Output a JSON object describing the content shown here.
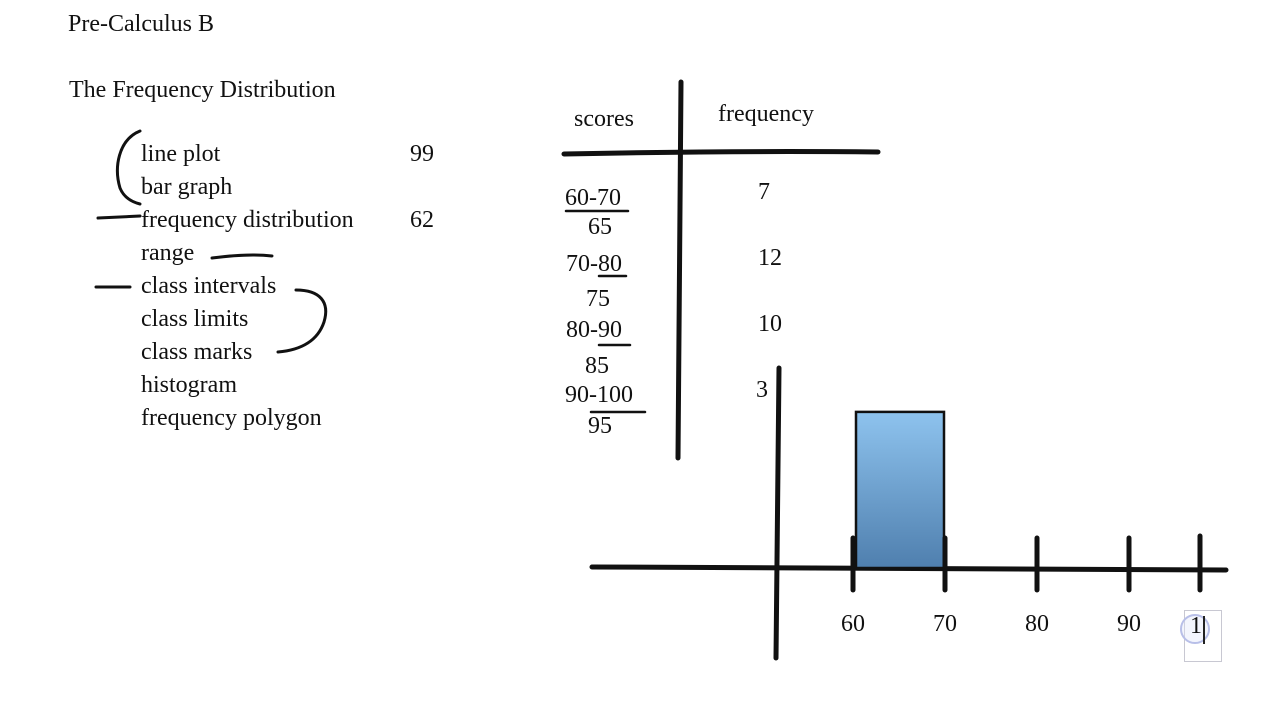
{
  "course_title": "Pre-Calculus B",
  "section_title": "The Frequency Distribution",
  "topics": [
    {
      "label": "line plot"
    },
    {
      "label": "bar graph"
    },
    {
      "label": "frequency distribution"
    },
    {
      "label": "range"
    },
    {
      "label": "class intervals"
    },
    {
      "label": "class limits"
    },
    {
      "label": "class marks"
    },
    {
      "label": "histogram"
    },
    {
      "label": "frequency polygon"
    }
  ],
  "side_numbers": [
    "99",
    "62"
  ],
  "table": {
    "headers": [
      "scores",
      "frequency"
    ],
    "rows": [
      {
        "interval": "60-70",
        "midpoint": "65",
        "frequency": "7"
      },
      {
        "interval": "70-80",
        "midpoint": "75",
        "frequency": "12"
      },
      {
        "interval": "80-90",
        "midpoint": "85",
        "frequency": "10"
      },
      {
        "interval": "90-100",
        "midpoint": "95",
        "frequency": "3"
      }
    ]
  },
  "chart_data": {
    "type": "bar",
    "x_tick_labels": [
      "60",
      "70",
      "80",
      "90"
    ],
    "bars": [
      {
        "from": 60,
        "to": 70,
        "value": 7
      }
    ],
    "bar_color": "#8ec3ee",
    "bar_color_bottom": "#4f7fae",
    "partial_text": "1"
  }
}
